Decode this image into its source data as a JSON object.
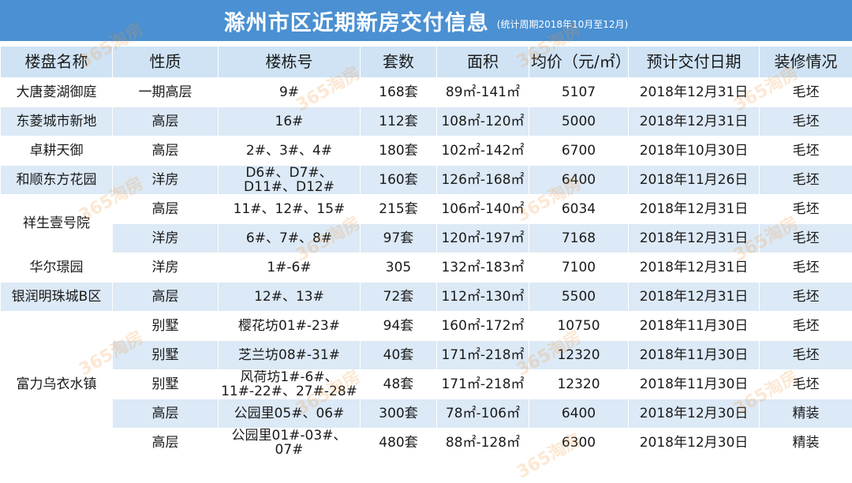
{
  "title": {
    "main": "滁州市区近期新房交付信息",
    "sub": "(统计周期2018年10月至12月)"
  },
  "watermark": "365淘房",
  "colors": {
    "title_bg": "#4a90d2",
    "header_bg": "#cfe3f5",
    "row_alt": "#dce9f6"
  },
  "columns": [
    "楼盘名称",
    "性质",
    "楼栋号",
    "套数",
    "面积",
    "均价（元/㎡）",
    "预计交付日期",
    "装修情况"
  ],
  "projects": [
    {
      "name": "大唐菱湖御庭",
      "rows": [
        {
          "type": "一期高层",
          "buildings": "9#",
          "units": "168套",
          "area": "89㎡-141㎡",
          "price": "5107",
          "date": "2018年12月31日",
          "finish": "毛坯"
        }
      ]
    },
    {
      "name": "东菱城市新地",
      "rows": [
        {
          "type": "高层",
          "buildings": "16#",
          "units": "112套",
          "area": "108㎡-120㎡",
          "price": "5000",
          "date": "2018年12月31日",
          "finish": "毛坯"
        }
      ]
    },
    {
      "name": "卓耕天御",
      "rows": [
        {
          "type": "高层",
          "buildings": "2#、3#、4#",
          "units": "180套",
          "area": "102㎡-142㎡",
          "price": "6700",
          "date": "2018年10月30日",
          "finish": "毛坯"
        }
      ]
    },
    {
      "name": "和顺东方花园",
      "rows": [
        {
          "type": "洋房",
          "buildings": "D6#、D7#、D11#、D12#",
          "units": "160套",
          "area": "126㎡-168㎡",
          "price": "6400",
          "date": "2018年11月26日",
          "finish": "毛坯"
        }
      ]
    },
    {
      "name": "祥生壹号院",
      "rows": [
        {
          "type": "高层",
          "buildings": "11#、12#、15#",
          "units": "215套",
          "area": "106㎡-140㎡",
          "price": "6034",
          "date": "2018年12月31日",
          "finish": "毛坯"
        },
        {
          "type": "洋房",
          "buildings": "6#、7#、8#",
          "units": "97套",
          "area": "120㎡-197㎡",
          "price": "7168",
          "date": "2018年12月31日",
          "finish": "毛坯"
        }
      ]
    },
    {
      "name": "华尔璟园",
      "rows": [
        {
          "type": "洋房",
          "buildings": "1#-6#",
          "units": "305",
          "area": "132㎡-183㎡",
          "price": "7100",
          "date": "2018年12月31日",
          "finish": "毛坯"
        }
      ]
    },
    {
      "name": "银润明珠城B区",
      "rows": [
        {
          "type": "高层",
          "buildings": "12#、13#",
          "units": "72套",
          "area": "112㎡-130㎡",
          "price": "5500",
          "date": "2018年12月31日",
          "finish": "毛坯"
        }
      ]
    },
    {
      "name": "富力乌衣水镇",
      "rows": [
        {
          "type": "别墅",
          "buildings": "樱花坊01#-23#",
          "units": "94套",
          "area": "160㎡-172㎡",
          "price": "10750",
          "date": "2018年11月30日",
          "finish": "毛坯"
        },
        {
          "type": "别墅",
          "buildings": "芝兰坊08#-31#",
          "units": "40套",
          "area": "171㎡-218㎡",
          "price": "12320",
          "date": "2018年11月30日",
          "finish": "毛坯"
        },
        {
          "type": "别墅",
          "buildings": "风荷坊1#-6#、11#-22#、27#-28#",
          "units": "48套",
          "area": "171㎡-218㎡",
          "price": "12320",
          "date": "2018年11月30日",
          "finish": "毛坯"
        },
        {
          "type": "高层",
          "buildings": "公园里05#、06#",
          "units": "300套",
          "area": "78㎡-106㎡",
          "price": "6400",
          "date": "2018年12月30日",
          "finish": "精装"
        },
        {
          "type": "高层",
          "buildings": "公园里01#-03#、07#",
          "units": "480套",
          "area": "88㎡-128㎡",
          "price": "6300",
          "date": "2018年12月30日",
          "finish": "精装"
        }
      ]
    }
  ]
}
